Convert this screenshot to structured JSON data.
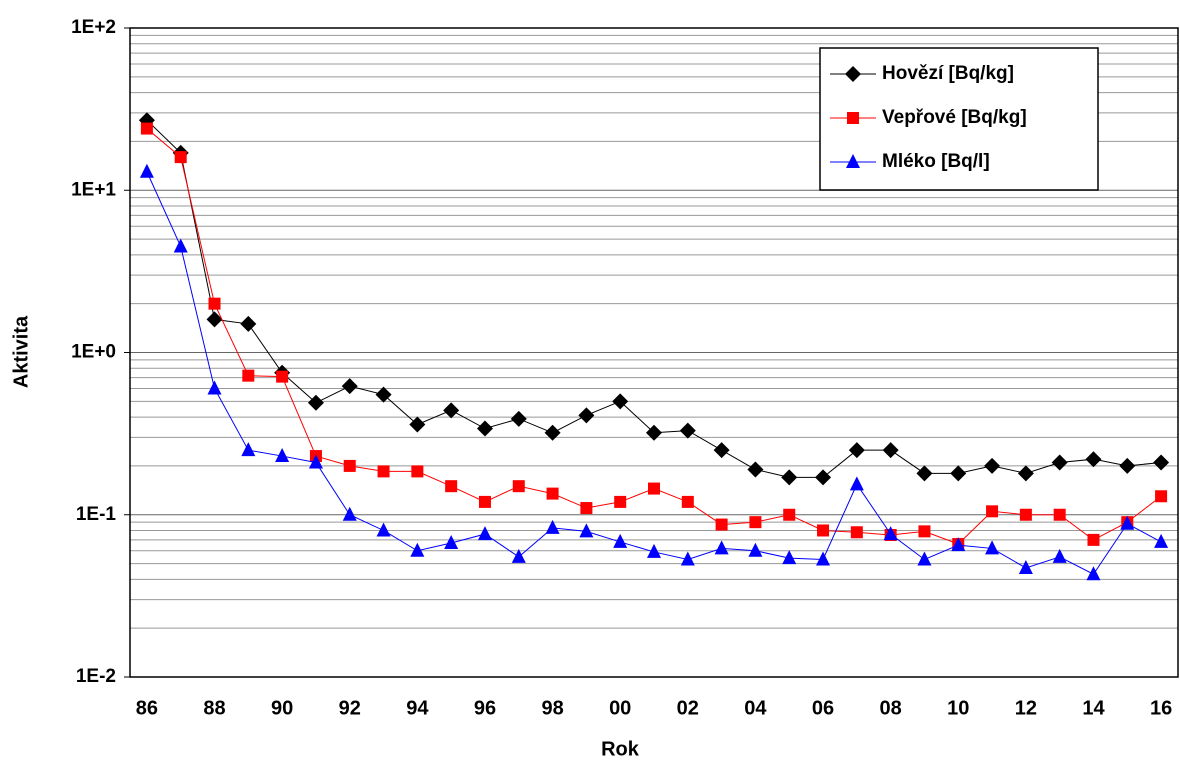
{
  "chart_data": {
    "type": "line",
    "x_label": "Rok",
    "y_label": "Aktivita",
    "categories": [
      "86",
      null,
      "88",
      null,
      "90",
      null,
      "92",
      null,
      "94",
      null,
      "96",
      null,
      "98",
      null,
      "00",
      null,
      "02",
      null,
      "04",
      null,
      "06",
      null,
      "08",
      null,
      "10",
      null,
      "12",
      null,
      "14",
      null,
      "16"
    ],
    "series": [
      {
        "name": "Hovězí [Bq/kg]",
        "color": "#000000",
        "marker": "diamond",
        "values": [
          27,
          17,
          1.6,
          1.5,
          0.75,
          0.49,
          0.62,
          0.55,
          0.36,
          0.44,
          0.34,
          0.39,
          0.32,
          0.41,
          0.5,
          0.32,
          0.33,
          0.25,
          0.19,
          0.17,
          0.17,
          0.25,
          0.25,
          0.18,
          0.18,
          0.2,
          0.18,
          0.21,
          0.22,
          0.2,
          0.21
        ]
      },
      {
        "name": "Vepřové [Bq/kg]",
        "color": "#ff0000",
        "marker": "square",
        "values": [
          24,
          16,
          2.0,
          0.72,
          0.71,
          0.23,
          0.2,
          0.185,
          0.185,
          0.15,
          0.12,
          0.15,
          0.135,
          0.11,
          0.12,
          0.145,
          0.12,
          0.087,
          0.09,
          0.1,
          0.08,
          0.078,
          0.075,
          0.079,
          0.066,
          0.105,
          0.1,
          0.1,
          0.07,
          0.09,
          0.13
        ]
      },
      {
        "name": "Mléko [Bq/l]",
        "color": "#0000ff",
        "marker": "triangle",
        "values": [
          13,
          4.5,
          0.6,
          0.25,
          0.23,
          0.21,
          0.1,
          0.08,
          0.06,
          0.067,
          0.076,
          0.055,
          0.083,
          0.079,
          0.068,
          0.059,
          0.053,
          0.062,
          0.06,
          0.054,
          0.053,
          0.154,
          0.076,
          0.053,
          0.065,
          0.062,
          0.047,
          0.055,
          0.043,
          0.088,
          0.068
        ]
      }
    ],
    "ylim": [
      0.01,
      100
    ],
    "yticks": [
      {
        "value": 0.01,
        "label": "1E-2"
      },
      {
        "value": 0.1,
        "label": "1E-1"
      },
      {
        "value": 1,
        "label": "1E+0"
      },
      {
        "value": 10,
        "label": "1E+1"
      },
      {
        "value": 100,
        "label": "1E+2"
      }
    ],
    "y_log": true,
    "grid": true,
    "minor_grid": true,
    "legend": "upper right"
  }
}
